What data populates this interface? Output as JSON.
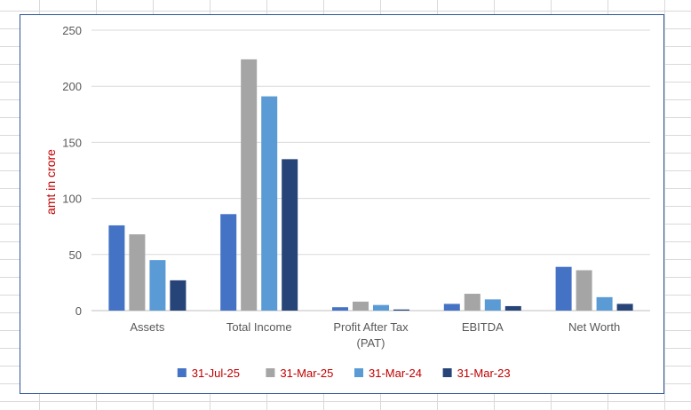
{
  "chart_data": {
    "type": "bar",
    "categories": [
      "Assets",
      "Total Income",
      "Profit After Tax (PAT)",
      "EBITDA",
      "Net Worth"
    ],
    "category_lines": [
      [
        "Assets"
      ],
      [
        "Total Income"
      ],
      [
        "Profit After Tax",
        "(PAT)"
      ],
      [
        "EBITDA"
      ],
      [
        "Net Worth"
      ]
    ],
    "series": [
      {
        "name": "31-Jul-25",
        "color": "#4472c4",
        "values": [
          76,
          86,
          3,
          6,
          39
        ]
      },
      {
        "name": "31-Mar-25",
        "color": "#a5a5a5",
        "values": [
          68,
          224,
          8,
          15,
          36
        ]
      },
      {
        "name": "31-Mar-24",
        "color": "#5b9bd5",
        "values": [
          45,
          191,
          5,
          10,
          12
        ]
      },
      {
        "name": "31-Mar-23",
        "color": "#264478",
        "values": [
          27,
          135,
          1,
          4,
          6
        ]
      }
    ],
    "title": "",
    "xlabel": "",
    "ylabel": "amt in crore",
    "ylim": [
      0,
      250
    ],
    "yticks": [
      "0",
      "50",
      "100",
      "150",
      "200",
      "250"
    ],
    "grid": true,
    "legend_position": "bottom",
    "legend_text_color": "#c00000",
    "ylabel_color": "#c00000"
  }
}
